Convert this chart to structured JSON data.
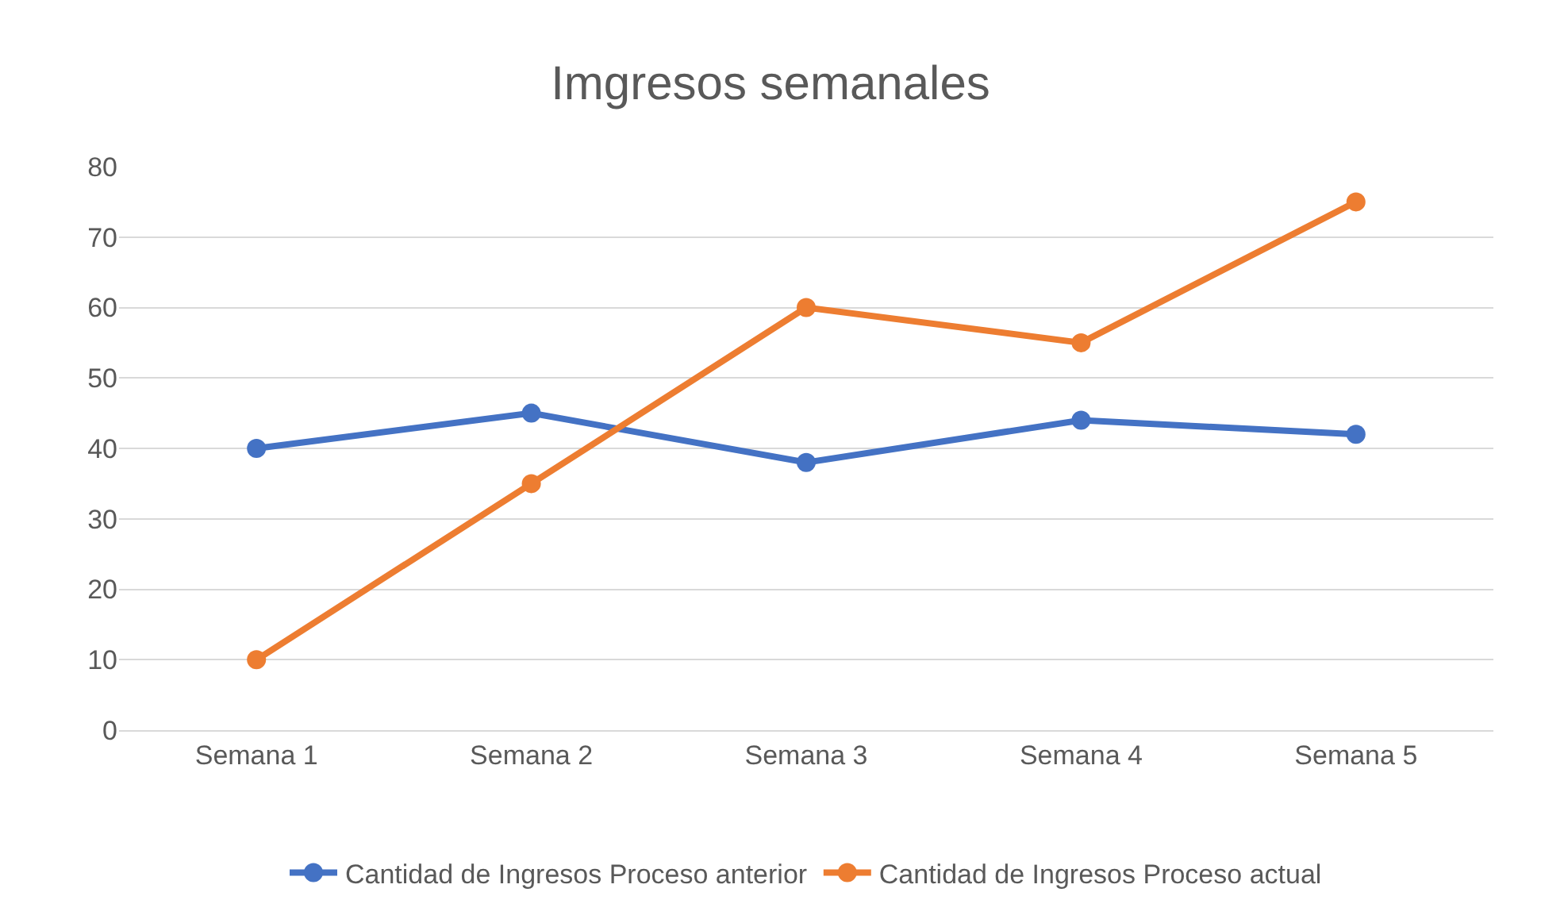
{
  "chart_data": {
    "type": "line",
    "title": "Imgresos semanales",
    "categories": [
      "Semana 1",
      "Semana 2",
      "Semana 3",
      "Semana 4",
      "Semana 5"
    ],
    "series": [
      {
        "name": "Cantidad de Ingresos Proceso anterior",
        "color": "#4472c4",
        "values": [
          40,
          45,
          38,
          44,
          42
        ]
      },
      {
        "name": "Cantidad de Ingresos Proceso actual",
        "color": "#ed7d31",
        "values": [
          10,
          35,
          60,
          55,
          75
        ]
      }
    ],
    "ylim": [
      0,
      80
    ],
    "yticks": [
      0,
      10,
      20,
      30,
      40,
      50,
      60,
      70,
      80
    ],
    "grid": "y",
    "legend": "bottom",
    "marker": "circle",
    "line_style": "solid"
  }
}
